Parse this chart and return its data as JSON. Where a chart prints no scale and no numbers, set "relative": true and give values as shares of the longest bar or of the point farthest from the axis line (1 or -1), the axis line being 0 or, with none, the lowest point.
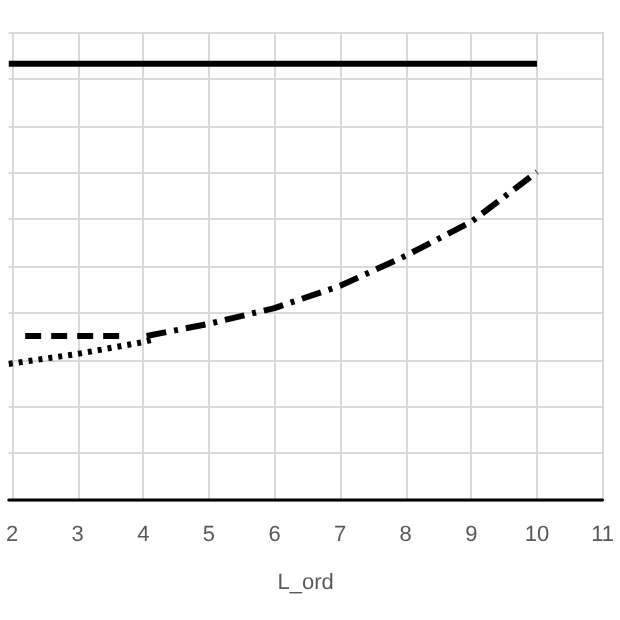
{
  "chart_data": {
    "type": "line",
    "xlabel": "L_ord",
    "relative": true,
    "xlim": [
      1.95,
      11
    ],
    "xticks": [
      2,
      3,
      4,
      5,
      6,
      7,
      8,
      9,
      10,
      11
    ],
    "grid": true,
    "marker": "none",
    "series": [
      {
        "color": "#000000",
        "line_style": "solid",
        "x": [
          1.95,
          10
        ],
        "values": [
          1,
          1
        ]
      },
      {
        "color": "#000000",
        "line_style": "dashed",
        "x": [
          2.2,
          3,
          3.75
        ],
        "values": [
          0.376,
          0.376,
          0.376
        ]
      },
      {
        "color": "#000000",
        "line_style": "dotted",
        "x": [
          1.95,
          3,
          4,
          4.2
        ],
        "values": [
          0.312,
          0.335,
          0.362,
          0.37
        ]
      },
      {
        "color": "#000000",
        "line_style": "dashdot",
        "x": [
          4.05,
          5,
          6,
          7,
          8,
          9,
          10
        ],
        "values": [
          0.376,
          0.404,
          0.44,
          0.491,
          0.56,
          0.638,
          0.752
        ]
      }
    ]
  }
}
